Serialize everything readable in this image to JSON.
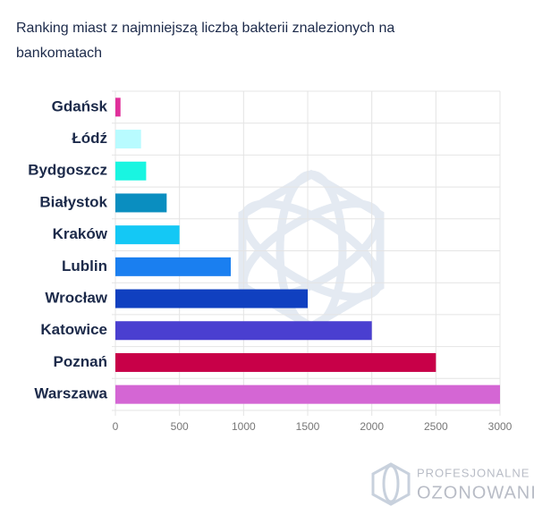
{
  "chart_data": {
    "type": "bar",
    "orientation": "horizontal",
    "title": "Ranking miast z najmniejszą liczbą bakterii znalezionych na bankomatach",
    "categories": [
      "Gdańsk",
      "Łódź",
      "Bydgoszcz",
      "Białystok",
      "Kraków",
      "Lublin",
      "Wrocław",
      "Katowice",
      "Poznań",
      "Warszawa"
    ],
    "values": [
      40,
      200,
      240,
      400,
      500,
      900,
      1500,
      2000,
      2500,
      3000
    ],
    "colors": [
      "#e0309a",
      "#b8fbff",
      "#19f5e1",
      "#0a8ec0",
      "#14c8f5",
      "#1a7ff0",
      "#1040c0",
      "#4a3fd0",
      "#c80048",
      "#d466d4"
    ],
    "xlim": [
      0,
      3000
    ],
    "xticks": [
      0,
      500,
      1000,
      1500,
      2000,
      2500,
      3000
    ],
    "grid": true,
    "watermark": [
      "PROFESJONALNE",
      "OZONOWANIE"
    ]
  }
}
